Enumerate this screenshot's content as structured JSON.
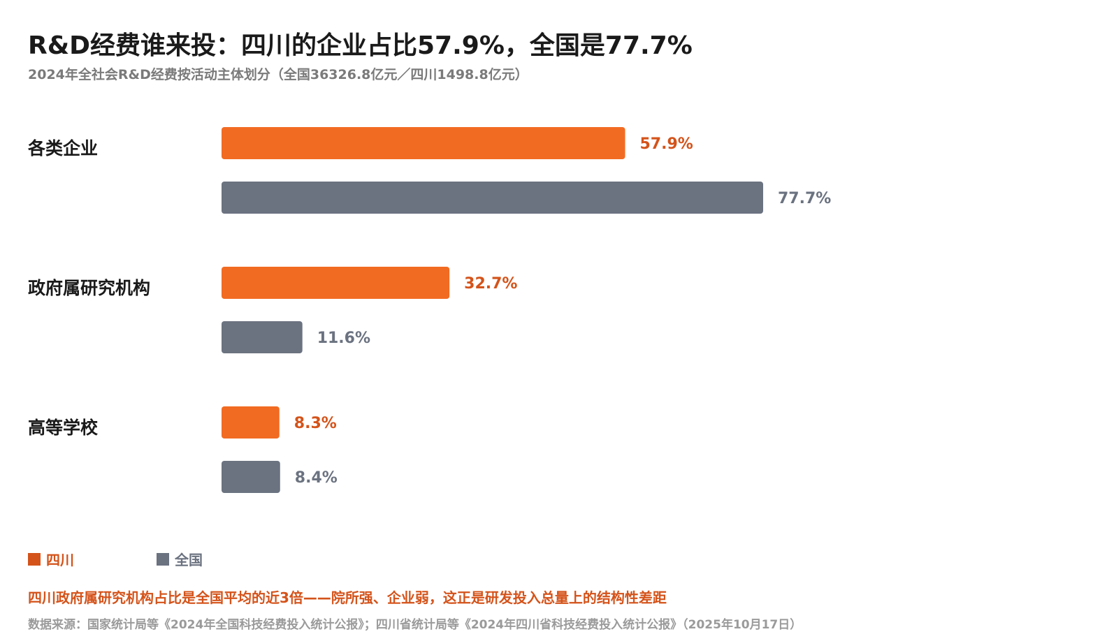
{
  "title": "R&D经费谁来投：四川的企业占比57.9%，全国是77.7%",
  "subtitle": "2024年全社会R&D经费按活动主体划分（全国36326.8亿元／四川1498.8亿元）",
  "colors": {
    "sichuan": "#f26b22",
    "national": "#6b7280",
    "sichuan_text": "#d4531a",
    "national_text": "#6b7280",
    "category_text": "#1a1a1a"
  },
  "chart_data": {
    "type": "bar",
    "orientation": "horizontal",
    "categories": [
      "各类企业",
      "政府属研究机构",
      "高等学校"
    ],
    "series": [
      {
        "name": "四川",
        "values": [
          57.9,
          32.7,
          8.3
        ],
        "labels": [
          "57.9%",
          "32.7%",
          "8.3%"
        ]
      },
      {
        "name": "全国",
        "values": [
          77.7,
          11.6,
          8.4
        ],
        "labels": [
          "77.7%",
          "11.6%",
          "8.4%"
        ]
      }
    ],
    "xlim": [
      0,
      100
    ],
    "grid": false,
    "legend_position": "bottom-left"
  },
  "legend": [
    {
      "label": "四川",
      "color": "#d4531a"
    },
    {
      "label": "全国",
      "color": "#6b7280"
    }
  ],
  "note": "四川政府属研究机构占比是全国平均的近3倍——院所强、企业弱，这正是研发投入总量上的结构性差距",
  "source": "数据来源：国家统计局等《2024年全国科技经费投入统计公报》；四川省统计局等《2024年四川省科技经费投入统计公报》（2025年10月17日）"
}
